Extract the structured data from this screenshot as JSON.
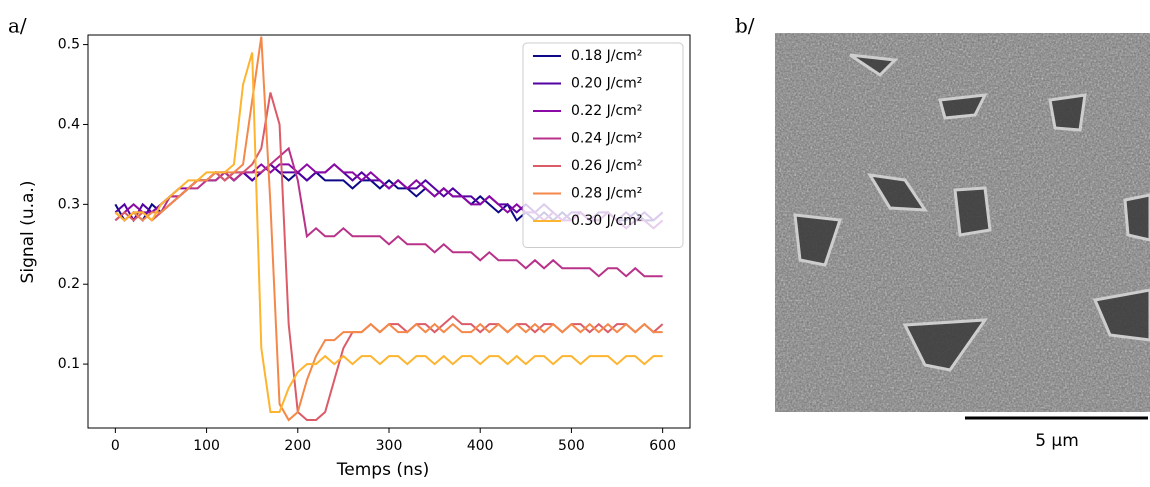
{
  "chart_data": {
    "type": "line",
    "xlabel": "Temps (ns)",
    "ylabel": "Signal (u.a.)",
    "x": [
      0,
      10,
      20,
      30,
      40,
      50,
      60,
      70,
      80,
      90,
      100,
      110,
      120,
      130,
      140,
      150,
      160,
      170,
      180,
      190,
      200,
      210,
      220,
      230,
      240,
      250,
      260,
      270,
      280,
      290,
      300,
      310,
      320,
      330,
      340,
      350,
      360,
      370,
      380,
      390,
      400,
      410,
      420,
      430,
      440,
      450,
      460,
      470,
      480,
      490,
      500,
      510,
      520,
      530,
      540,
      550,
      560,
      570,
      580,
      590,
      600
    ],
    "xlim": [
      -30,
      630
    ],
    "xticks": [
      0,
      100,
      200,
      300,
      400,
      500,
      600
    ],
    "ylim": [
      0.02,
      0.512
    ],
    "yticks": [
      0.1,
      0.2,
      0.3,
      0.4,
      0.5
    ],
    "legend": "upper right",
    "series": [
      {
        "name": "0.18 J/cm²",
        "color": "#0d0887",
        "values": [
          0.3,
          0.28,
          0.29,
          0.28,
          0.3,
          0.29,
          0.3,
          0.31,
          0.32,
          0.33,
          0.33,
          0.33,
          0.34,
          0.33,
          0.34,
          0.33,
          0.34,
          0.35,
          0.34,
          0.33,
          0.34,
          0.33,
          0.34,
          0.33,
          0.33,
          0.33,
          0.32,
          0.33,
          0.33,
          0.32,
          0.33,
          0.32,
          0.32,
          0.31,
          0.32,
          0.31,
          0.32,
          0.31,
          0.31,
          0.3,
          0.31,
          0.3,
          0.29,
          0.3,
          0.28,
          0.29,
          0.28,
          0.29,
          0.28,
          0.29,
          0.28,
          0.29,
          0.28,
          0.28,
          0.29,
          0.28,
          0.28,
          0.29,
          0.28,
          0.28,
          0.29
        ]
      },
      {
        "name": "0.20 J/cm²",
        "color": "#5302a3",
        "values": [
          0.29,
          0.3,
          0.28,
          0.3,
          0.29,
          0.3,
          0.31,
          0.31,
          0.32,
          0.33,
          0.33,
          0.34,
          0.33,
          0.34,
          0.34,
          0.33,
          0.34,
          0.35,
          0.34,
          0.34,
          0.34,
          0.33,
          0.34,
          0.34,
          0.35,
          0.34,
          0.33,
          0.34,
          0.33,
          0.33,
          0.32,
          0.33,
          0.32,
          0.32,
          0.33,
          0.32,
          0.31,
          0.32,
          0.31,
          0.31,
          0.3,
          0.31,
          0.3,
          0.3,
          0.29,
          0.3,
          0.29,
          0.3,
          0.29,
          0.28,
          0.29,
          0.29,
          0.28,
          0.29,
          0.29,
          0.28,
          0.29,
          0.28,
          0.29,
          0.28,
          0.29
        ]
      },
      {
        "name": "0.22 J/cm²",
        "color": "#8b0aa5",
        "values": [
          0.28,
          0.29,
          0.3,
          0.29,
          0.29,
          0.3,
          0.31,
          0.32,
          0.32,
          0.33,
          0.33,
          0.34,
          0.34,
          0.33,
          0.34,
          0.34,
          0.35,
          0.34,
          0.35,
          0.35,
          0.34,
          0.35,
          0.34,
          0.34,
          0.35,
          0.34,
          0.34,
          0.33,
          0.34,
          0.33,
          0.32,
          0.33,
          0.32,
          0.33,
          0.32,
          0.31,
          0.32,
          0.31,
          0.31,
          0.3,
          0.3,
          0.31,
          0.3,
          0.29,
          0.3,
          0.29,
          0.29,
          0.28,
          0.29,
          0.28,
          0.28,
          0.29,
          0.28,
          0.28,
          0.29,
          0.28,
          0.27,
          0.28,
          0.28,
          0.27,
          0.28
        ]
      },
      {
        "name": "0.24 J/cm²",
        "color": "#b83289",
        "values": [
          0.29,
          0.28,
          0.29,
          0.29,
          0.28,
          0.29,
          0.31,
          0.31,
          0.32,
          0.32,
          0.33,
          0.33,
          0.34,
          0.33,
          0.34,
          0.34,
          0.34,
          0.35,
          0.36,
          0.37,
          0.33,
          0.26,
          0.27,
          0.26,
          0.26,
          0.27,
          0.26,
          0.26,
          0.26,
          0.26,
          0.25,
          0.26,
          0.25,
          0.25,
          0.25,
          0.24,
          0.25,
          0.24,
          0.24,
          0.24,
          0.23,
          0.24,
          0.23,
          0.23,
          0.23,
          0.22,
          0.23,
          0.22,
          0.23,
          0.22,
          0.22,
          0.22,
          0.22,
          0.21,
          0.22,
          0.22,
          0.21,
          0.22,
          0.21,
          0.21,
          0.21
        ]
      },
      {
        "name": "0.26 J/cm²",
        "color": "#db5c68",
        "values": [
          0.28,
          0.29,
          0.28,
          0.29,
          0.28,
          0.29,
          0.3,
          0.31,
          0.32,
          0.33,
          0.33,
          0.34,
          0.33,
          0.34,
          0.34,
          0.35,
          0.37,
          0.44,
          0.4,
          0.15,
          0.04,
          0.03,
          0.03,
          0.04,
          0.08,
          0.12,
          0.14,
          0.14,
          0.15,
          0.14,
          0.15,
          0.15,
          0.14,
          0.15,
          0.15,
          0.14,
          0.15,
          0.16,
          0.15,
          0.15,
          0.14,
          0.15,
          0.15,
          0.14,
          0.15,
          0.15,
          0.14,
          0.15,
          0.15,
          0.14,
          0.15,
          0.15,
          0.14,
          0.15,
          0.14,
          0.15,
          0.15,
          0.14,
          0.15,
          0.14,
          0.15
        ]
      },
      {
        "name": "0.28 J/cm²",
        "color": "#f48849",
        "values": [
          0.29,
          0.28,
          0.29,
          0.28,
          0.29,
          0.29,
          0.3,
          0.31,
          0.32,
          0.33,
          0.33,
          0.34,
          0.34,
          0.34,
          0.35,
          0.43,
          0.51,
          0.3,
          0.05,
          0.03,
          0.04,
          0.08,
          0.11,
          0.13,
          0.13,
          0.14,
          0.14,
          0.14,
          0.15,
          0.14,
          0.15,
          0.14,
          0.14,
          0.15,
          0.14,
          0.15,
          0.14,
          0.15,
          0.14,
          0.14,
          0.15,
          0.14,
          0.15,
          0.14,
          0.15,
          0.14,
          0.15,
          0.14,
          0.15,
          0.14,
          0.15,
          0.14,
          0.15,
          0.14,
          0.15,
          0.14,
          0.15,
          0.14,
          0.15,
          0.14,
          0.14
        ]
      },
      {
        "name": "0.30 J/cm²",
        "color": "#fdb42f",
        "values": [
          0.29,
          0.28,
          0.29,
          0.29,
          0.28,
          0.3,
          0.31,
          0.32,
          0.33,
          0.33,
          0.34,
          0.34,
          0.34,
          0.35,
          0.45,
          0.49,
          0.12,
          0.04,
          0.04,
          0.07,
          0.09,
          0.1,
          0.1,
          0.11,
          0.1,
          0.11,
          0.1,
          0.11,
          0.11,
          0.1,
          0.11,
          0.11,
          0.1,
          0.11,
          0.11,
          0.1,
          0.11,
          0.1,
          0.11,
          0.11,
          0.1,
          0.11,
          0.11,
          0.1,
          0.11,
          0.1,
          0.11,
          0.11,
          0.1,
          0.11,
          0.11,
          0.1,
          0.11,
          0.11,
          0.11,
          0.1,
          0.11,
          0.11,
          0.1,
          0.11,
          0.11
        ]
      }
    ]
  },
  "panels": {
    "a_label": "a/",
    "b_label": "b/",
    "scale_bar": "5 µm"
  }
}
